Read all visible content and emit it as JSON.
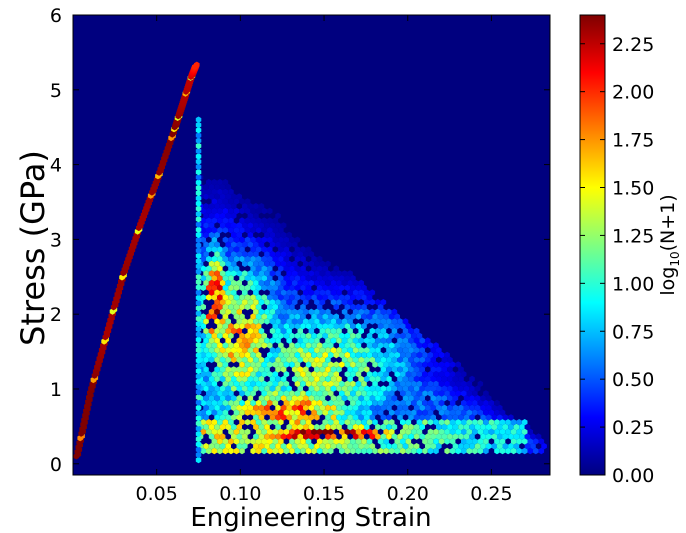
{
  "chart_data": {
    "type": "heatmap",
    "subtype": "hexbin",
    "xlabel": "Engineering Strain",
    "ylabel": "Stress (GPa)",
    "xlim": [
      0.0,
      0.285
    ],
    "ylim": [
      -0.15,
      6.0
    ],
    "xticks": [
      {
        "value": 0.05,
        "label": "0.05"
      },
      {
        "value": 0.1,
        "label": "0.10"
      },
      {
        "value": 0.15,
        "label": "0.15"
      },
      {
        "value": 0.2,
        "label": "0.20"
      },
      {
        "value": 0.25,
        "label": "0.25"
      }
    ],
    "yticks": [
      {
        "value": 0,
        "label": "0"
      },
      {
        "value": 1,
        "label": "1"
      },
      {
        "value": 2,
        "label": "2"
      },
      {
        "value": 3,
        "label": "3"
      },
      {
        "value": 4,
        "label": "4"
      },
      {
        "value": 5,
        "label": "5"
      },
      {
        "value": 6,
        "label": "6"
      }
    ],
    "colorbar": {
      "label_main": "log",
      "label_sub": "10",
      "label_rest": "(N+1)",
      "range": [
        0.0,
        2.4
      ],
      "colormap": "jet",
      "ticks": [
        {
          "value": 0.0,
          "label": "0.00"
        },
        {
          "value": 0.25,
          "label": "0.25"
        },
        {
          "value": 0.5,
          "label": "0.50"
        },
        {
          "value": 0.75,
          "label": "0.75"
        },
        {
          "value": 1.0,
          "label": "1.00"
        },
        {
          "value": 1.25,
          "label": "1.25"
        },
        {
          "value": 1.5,
          "label": "1.50"
        },
        {
          "value": 1.75,
          "label": "1.75"
        },
        {
          "value": 2.0,
          "label": "2.00"
        },
        {
          "value": 2.25,
          "label": "2.25"
        }
      ]
    },
    "background_color": "#00007f",
    "elastic_branch": {
      "x": [
        0.002,
        0.01,
        0.02,
        0.03,
        0.04,
        0.05,
        0.06,
        0.065,
        0.07,
        0.073
      ],
      "y": [
        0.1,
        0.95,
        1.75,
        2.55,
        3.2,
        3.8,
        4.45,
        4.8,
        5.15,
        5.32
      ],
      "log_count": [
        2.4,
        2.4,
        2.3,
        2.35,
        2.3,
        2.35,
        2.4,
        2.3,
        2.25,
        2.0
      ]
    },
    "vertical_drop": {
      "x": 0.075,
      "y_range": [
        0.05,
        4.6
      ],
      "log_count": 0.9
    },
    "clusters": [
      {
        "x": 0.085,
        "y": 2.15,
        "log_count": 2.1,
        "sx": 0.006,
        "sy": 0.55
      },
      {
        "x": 0.1,
        "y": 1.7,
        "log_count": 1.6,
        "sx": 0.018,
        "sy": 0.75
      },
      {
        "x": 0.15,
        "y": 0.4,
        "log_count": 2.35,
        "sx": 0.04,
        "sy": 0.09
      },
      {
        "x": 0.13,
        "y": 0.7,
        "log_count": 1.75,
        "sx": 0.035,
        "sy": 0.3
      },
      {
        "x": 0.15,
        "y": 1.3,
        "log_count": 1.3,
        "sx": 0.04,
        "sy": 0.6
      }
    ]
  }
}
